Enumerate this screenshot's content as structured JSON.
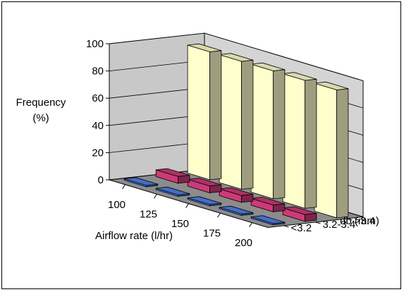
{
  "chart_data": {
    "type": "bar",
    "style": "3d-column",
    "title": "",
    "ylabel": [
      "Frequency",
      "(%)"
    ],
    "xlabel": "Airflow rate (l/hr)",
    "zlabel": "db (mm)",
    "ylim": [
      0,
      100
    ],
    "yticks": [
      0,
      20,
      40,
      60,
      80,
      100
    ],
    "categories": [
      "100",
      "125",
      "150",
      "175",
      "200"
    ],
    "series": [
      {
        "name": "<3.2",
        "color": "#4f81e8",
        "values": [
          1,
          1,
          1,
          1,
          1
        ]
      },
      {
        "name": "3.2-3.4",
        "color": "#cc3a78",
        "values": [
          5,
          5,
          5,
          5,
          5
        ]
      },
      {
        "name": ">3.4",
        "color": "#ffffcc",
        "values": [
          94,
          94,
          94,
          94,
          94
        ]
      }
    ],
    "grid": true,
    "legend": "depth-axis"
  }
}
